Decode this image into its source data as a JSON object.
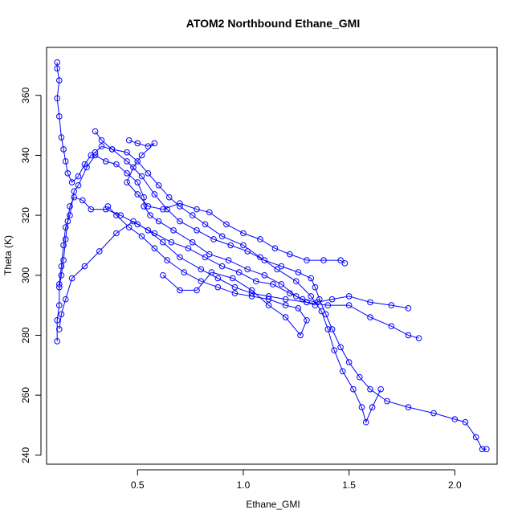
{
  "chart_data": {
    "type": "scatter",
    "title": "ATOM2 Northbound Ethane_GMI",
    "xlabel": "Ethane_GMI",
    "ylabel": "Theta (K)",
    "xlim": [
      0.07,
      2.2
    ],
    "ylim": [
      237,
      376
    ],
    "xticks": [
      "0.5",
      "1.0",
      "1.5",
      "2.0"
    ],
    "xtick_values": [
      0.5,
      1.0,
      1.5,
      2.0
    ],
    "yticks": [
      "240",
      "260",
      "280",
      "300",
      "320",
      "340",
      "360"
    ],
    "ytick_values": [
      240,
      260,
      280,
      300,
      320,
      340,
      360
    ],
    "grid": false,
    "legend": "none",
    "marker": "open-circle",
    "connected": true,
    "color": "#0000ff",
    "series": [
      {
        "values": [
          [
            0.12,
            371
          ],
          [
            0.12,
            369
          ],
          [
            0.13,
            365
          ],
          [
            0.12,
            359
          ],
          [
            0.13,
            353
          ],
          [
            0.14,
            346
          ],
          [
            0.15,
            342
          ],
          [
            0.16,
            338
          ],
          [
            0.17,
            334
          ],
          [
            0.19,
            331
          ],
          [
            0.22,
            333
          ],
          [
            0.25,
            337
          ],
          [
            0.28,
            340
          ],
          [
            0.3,
            341
          ],
          [
            0.33,
            343
          ],
          [
            0.38,
            342
          ],
          [
            0.45,
            341
          ],
          [
            0.5,
            338
          ],
          [
            0.55,
            334
          ],
          [
            0.6,
            330
          ],
          [
            0.65,
            326
          ],
          [
            0.7,
            323
          ],
          [
            0.76,
            320
          ],
          [
            0.82,
            317
          ],
          [
            0.9,
            313
          ],
          [
            1.0,
            310
          ],
          [
            1.08,
            306
          ],
          [
            1.16,
            302
          ],
          [
            1.25,
            298
          ],
          [
            1.32,
            293
          ],
          [
            1.37,
            288
          ],
          [
            1.4,
            282
          ],
          [
            1.43,
            275
          ],
          [
            1.47,
            268
          ],
          [
            1.52,
            262
          ],
          [
            1.56,
            256
          ],
          [
            1.58,
            251
          ],
          [
            1.61,
            256
          ],
          [
            1.65,
            262
          ]
        ]
      },
      {
        "values": [
          [
            0.13,
            296
          ],
          [
            0.14,
            300
          ],
          [
            0.15,
            305
          ],
          [
            0.16,
            312
          ],
          [
            0.17,
            318
          ],
          [
            0.18,
            323
          ],
          [
            0.2,
            326
          ],
          [
            0.24,
            325
          ],
          [
            0.28,
            322
          ],
          [
            0.35,
            322
          ],
          [
            0.42,
            320
          ],
          [
            0.5,
            317
          ],
          [
            0.58,
            314
          ],
          [
            0.66,
            311
          ],
          [
            0.74,
            309
          ],
          [
            0.82,
            306
          ],
          [
            0.9,
            303
          ],
          [
            0.98,
            301
          ],
          [
            1.06,
            298
          ],
          [
            1.14,
            297
          ],
          [
            1.22,
            294
          ],
          [
            1.28,
            292
          ],
          [
            1.35,
            291
          ],
          [
            1.42,
            292
          ],
          [
            1.5,
            293
          ],
          [
            1.6,
            291
          ],
          [
            1.7,
            290
          ],
          [
            1.78,
            289
          ]
        ]
      },
      {
        "values": [
          [
            0.13,
            282
          ],
          [
            0.14,
            287
          ],
          [
            0.16,
            292
          ],
          [
            0.19,
            299
          ],
          [
            0.25,
            303
          ],
          [
            0.32,
            308
          ],
          [
            0.4,
            314
          ],
          [
            0.48,
            318
          ],
          [
            0.55,
            315
          ],
          [
            0.62,
            311
          ],
          [
            0.7,
            306
          ],
          [
            0.8,
            302
          ],
          [
            0.88,
            299
          ],
          [
            0.96,
            296
          ],
          [
            1.04,
            294
          ],
          [
            1.12,
            293
          ],
          [
            1.2,
            292
          ],
          [
            1.3,
            291
          ],
          [
            1.4,
            290
          ],
          [
            1.5,
            290
          ],
          [
            1.6,
            286
          ],
          [
            1.7,
            283
          ],
          [
            1.78,
            280
          ],
          [
            1.83,
            279
          ]
        ]
      },
      {
        "values": [
          [
            0.3,
            348
          ],
          [
            0.33,
            345
          ],
          [
            0.38,
            342
          ],
          [
            0.45,
            338
          ],
          [
            0.52,
            333
          ],
          [
            0.58,
            327
          ],
          [
            0.64,
            322
          ],
          [
            0.7,
            318
          ],
          [
            0.78,
            315
          ],
          [
            0.86,
            312
          ],
          [
            0.94,
            310
          ],
          [
            1.02,
            308
          ],
          [
            1.1,
            305
          ],
          [
            1.18,
            303
          ],
          [
            1.26,
            301
          ],
          [
            1.32,
            299
          ],
          [
            1.34,
            296
          ],
          [
            1.36,
            292
          ],
          [
            1.39,
            287
          ],
          [
            1.42,
            282
          ],
          [
            1.46,
            276
          ],
          [
            1.5,
            271
          ],
          [
            1.55,
            266
          ],
          [
            1.6,
            262
          ],
          [
            1.68,
            258
          ],
          [
            1.78,
            256
          ],
          [
            1.9,
            254
          ],
          [
            2.0,
            252
          ],
          [
            2.05,
            251
          ],
          [
            2.1,
            246
          ],
          [
            2.13,
            242
          ],
          [
            2.15,
            242
          ]
        ]
      },
      {
        "values": [
          [
            0.46,
            345
          ],
          [
            0.5,
            344
          ],
          [
            0.55,
            343
          ],
          [
            0.58,
            344
          ],
          [
            0.52,
            340
          ],
          [
            0.48,
            336
          ],
          [
            0.45,
            331
          ],
          [
            0.5,
            327
          ],
          [
            0.55,
            323
          ],
          [
            0.62,
            322
          ],
          [
            0.7,
            324
          ],
          [
            0.78,
            322
          ],
          [
            0.84,
            321
          ],
          [
            0.92,
            317
          ],
          [
            1.0,
            314
          ],
          [
            1.08,
            312
          ],
          [
            1.15,
            309
          ],
          [
            1.22,
            307
          ],
          [
            1.3,
            305
          ],
          [
            1.38,
            305
          ],
          [
            1.46,
            305
          ],
          [
            1.48,
            304
          ]
        ]
      },
      {
        "values": [
          [
            0.36,
            323
          ],
          [
            0.4,
            320
          ],
          [
            0.46,
            316
          ],
          [
            0.52,
            313
          ],
          [
            0.58,
            309
          ],
          [
            0.64,
            305
          ],
          [
            0.72,
            301
          ],
          [
            0.8,
            298
          ],
          [
            0.88,
            296
          ],
          [
            0.96,
            294
          ],
          [
            1.04,
            293
          ],
          [
            1.12,
            292
          ],
          [
            1.2,
            290
          ],
          [
            1.26,
            289
          ],
          [
            1.3,
            285
          ],
          [
            1.27,
            280
          ],
          [
            1.2,
            286
          ],
          [
            1.12,
            290
          ],
          [
            1.04,
            295
          ],
          [
            0.95,
            299
          ],
          [
            0.85,
            301
          ],
          [
            0.78,
            295
          ],
          [
            0.7,
            295
          ],
          [
            0.62,
            300
          ]
        ]
      },
      {
        "values": [
          [
            0.12,
            278
          ],
          [
            0.12,
            285
          ],
          [
            0.13,
            290
          ],
          [
            0.13,
            297
          ],
          [
            0.14,
            303
          ],
          [
            0.15,
            310
          ],
          [
            0.16,
            316
          ],
          [
            0.18,
            320
          ],
          [
            0.2,
            328
          ],
          [
            0.22,
            330
          ],
          [
            0.26,
            336
          ],
          [
            0.3,
            340
          ],
          [
            0.35,
            338
          ],
          [
            0.4,
            337
          ],
          [
            0.45,
            334
          ],
          [
            0.5,
            331
          ],
          [
            0.53,
            326
          ],
          [
            0.53,
            323
          ],
          [
            0.56,
            320
          ],
          [
            0.6,
            318
          ],
          [
            0.67,
            315
          ],
          [
            0.76,
            311
          ],
          [
            0.84,
            307
          ],
          [
            0.93,
            305
          ],
          [
            1.02,
            302
          ],
          [
            1.1,
            300
          ],
          [
            1.18,
            297
          ],
          [
            1.25,
            293
          ],
          [
            1.3,
            291
          ],
          [
            1.34,
            290
          ]
        ]
      }
    ]
  }
}
